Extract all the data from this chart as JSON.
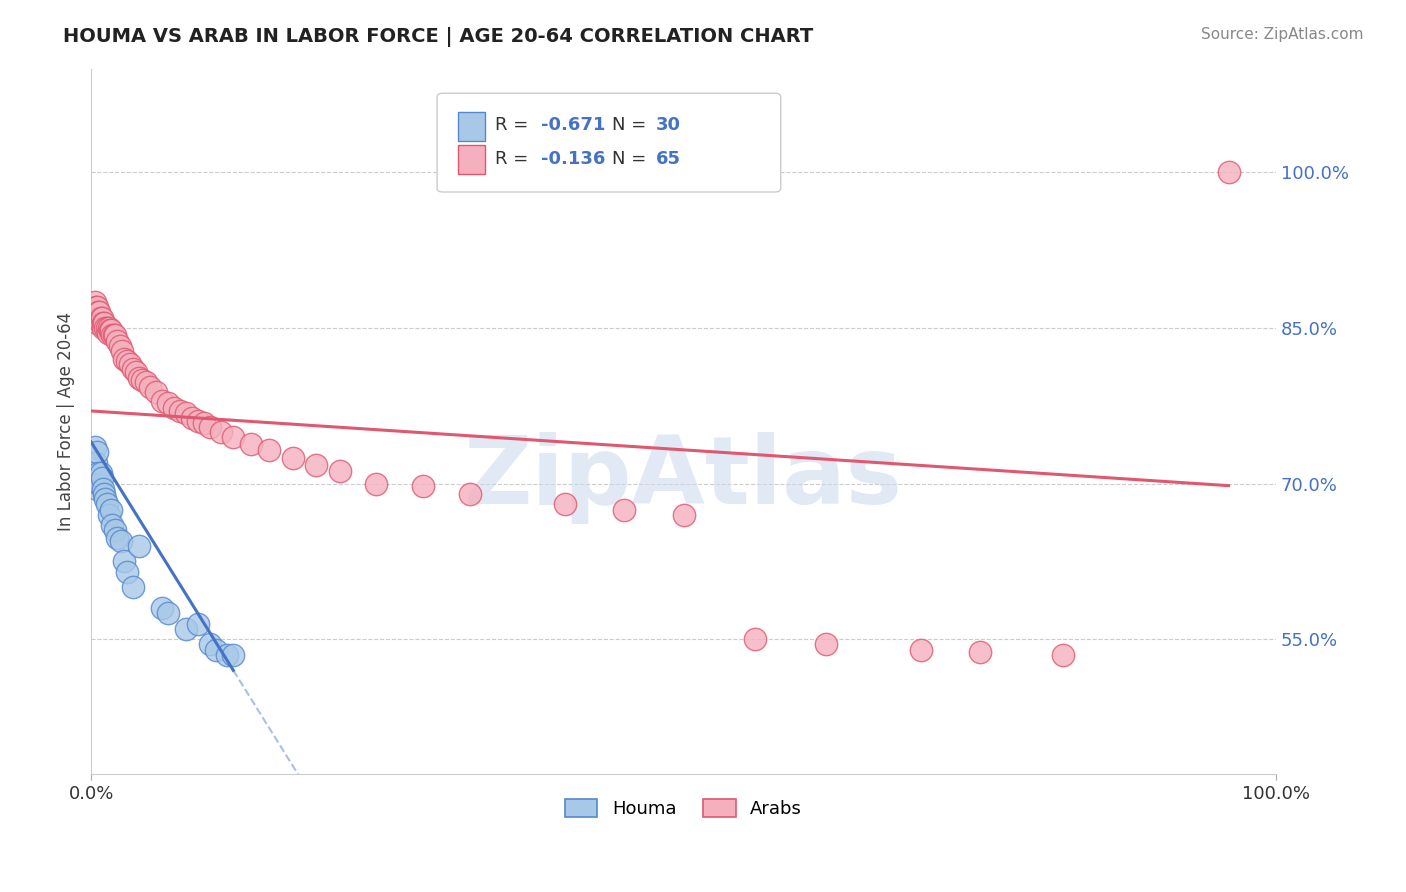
{
  "title": "HOUMA VS ARAB IN LABOR FORCE | AGE 20-64 CORRELATION CHART",
  "source": "Source: ZipAtlas.com",
  "ylabel": "In Labor Force | Age 20-64",
  "xlim": [
    0.0,
    1.0
  ],
  "ylim": [
    0.42,
    1.1
  ],
  "yticks": [
    0.55,
    0.7,
    0.85,
    1.0
  ],
  "ytick_labels": [
    "55.0%",
    "70.0%",
    "85.0%",
    "100.0%"
  ],
  "houma_color": "#a8c8e8",
  "arab_color": "#f5b0be",
  "houma_edge_color": "#5588cc",
  "arab_edge_color": "#e05870",
  "houma_line_color": "#4472c4",
  "arab_line_color": "#e05870",
  "houma_R": -0.671,
  "houma_N": 30,
  "arab_R": -0.136,
  "arab_N": 65,
  "legend_label_houma": "Houma",
  "legend_label_arab": "Arabs",
  "watermark": "ZipAtlas",
  "houma_x": [
    0.003,
    0.004,
    0.005,
    0.005,
    0.006,
    0.007,
    0.008,
    0.009,
    0.01,
    0.011,
    0.012,
    0.013,
    0.015,
    0.017,
    0.018,
    0.02,
    0.022,
    0.025,
    0.028,
    0.03,
    0.035,
    0.04,
    0.06,
    0.065,
    0.08,
    0.09,
    0.1,
    0.105,
    0.115,
    0.12
  ],
  "houma_y": [
    0.735,
    0.72,
    0.73,
    0.695,
    0.71,
    0.7,
    0.71,
    0.705,
    0.695,
    0.69,
    0.685,
    0.68,
    0.67,
    0.675,
    0.66,
    0.655,
    0.648,
    0.645,
    0.625,
    0.615,
    0.6,
    0.64,
    0.58,
    0.575,
    0.56,
    0.565,
    0.545,
    0.54,
    0.535,
    0.535
  ],
  "arab_x": [
    0.002,
    0.003,
    0.004,
    0.004,
    0.005,
    0.005,
    0.006,
    0.006,
    0.007,
    0.008,
    0.008,
    0.009,
    0.01,
    0.01,
    0.011,
    0.012,
    0.013,
    0.014,
    0.015,
    0.016,
    0.017,
    0.018,
    0.019,
    0.02,
    0.022,
    0.024,
    0.026,
    0.028,
    0.03,
    0.033,
    0.035,
    0.038,
    0.04,
    0.043,
    0.046,
    0.05,
    0.055,
    0.06,
    0.065,
    0.07,
    0.075,
    0.08,
    0.085,
    0.09,
    0.095,
    0.1,
    0.11,
    0.12,
    0.135,
    0.15,
    0.17,
    0.19,
    0.21,
    0.24,
    0.28,
    0.32,
    0.4,
    0.45,
    0.5,
    0.56,
    0.62,
    0.7,
    0.75,
    0.82,
    0.96
  ],
  "arab_y": [
    0.86,
    0.875,
    0.87,
    0.865,
    0.87,
    0.855,
    0.865,
    0.86,
    0.865,
    0.86,
    0.855,
    0.86,
    0.855,
    0.85,
    0.855,
    0.85,
    0.85,
    0.845,
    0.85,
    0.848,
    0.848,
    0.843,
    0.843,
    0.843,
    0.837,
    0.833,
    0.828,
    0.82,
    0.818,
    0.815,
    0.81,
    0.808,
    0.802,
    0.8,
    0.798,
    0.793,
    0.788,
    0.78,
    0.778,
    0.773,
    0.77,
    0.768,
    0.763,
    0.76,
    0.758,
    0.755,
    0.75,
    0.745,
    0.738,
    0.732,
    0.725,
    0.718,
    0.712,
    0.7,
    0.698,
    0.69,
    0.68,
    0.675,
    0.67,
    0.55,
    0.545,
    0.54,
    0.538,
    0.535,
    1.0
  ],
  "houma_line_x0": 0.0,
  "houma_line_y0": 0.74,
  "houma_line_x1": 0.12,
  "houma_line_y1": 0.52,
  "arab_line_x0": 0.0,
  "arab_line_y0": 0.77,
  "arab_line_x1": 0.96,
  "arab_line_y1": 0.698
}
